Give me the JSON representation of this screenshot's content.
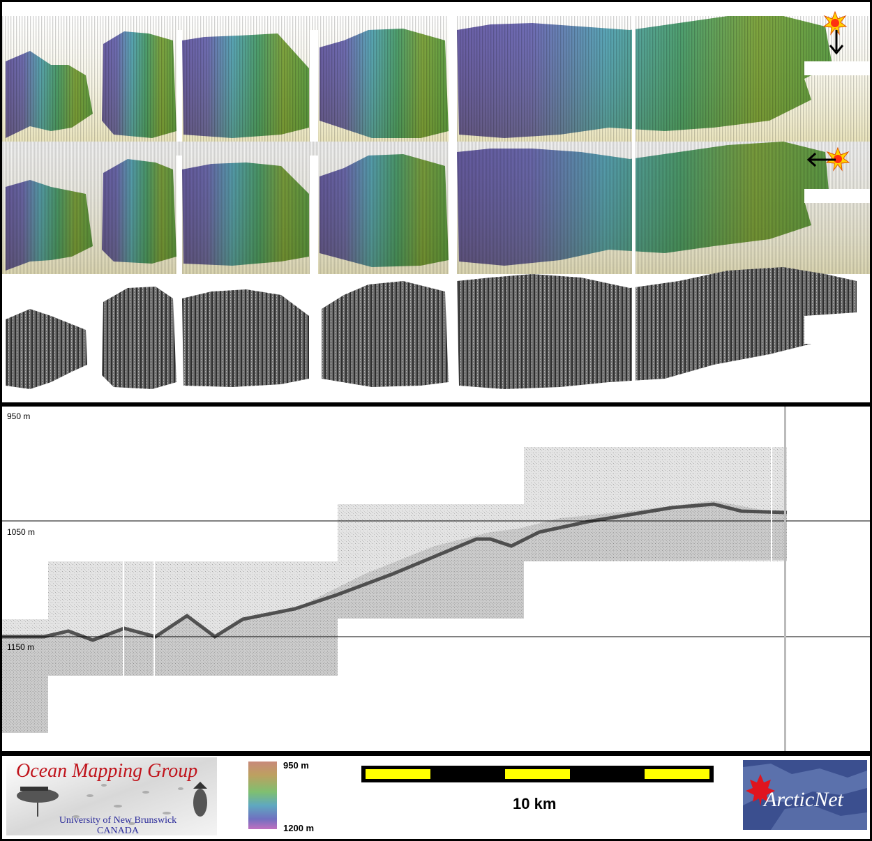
{
  "profile": {
    "depth_labels": [
      "950 m",
      "1050 m",
      "1150 m"
    ]
  },
  "legend": {
    "group_name": "Ocean Mapping Group",
    "university_line1": "University of New Brunswick",
    "university_line2": "CANADA",
    "colorbar_top": "950 m",
    "colorbar_bottom": "1200 m",
    "scale_label": "10 km",
    "partner_logo_text": "ArcticNet"
  },
  "icons": {
    "sun_top": "sun-icon",
    "arrow_top": "arrow-down-icon",
    "sun_middle": "sun-icon",
    "arrow_middle": "arrow-left-icon"
  },
  "colors": {
    "frame": "#000000",
    "scale_bar_fill": "#ffff00",
    "logo_red": "#c0141c",
    "arcticnet_blue": "#3b4f8f"
  }
}
